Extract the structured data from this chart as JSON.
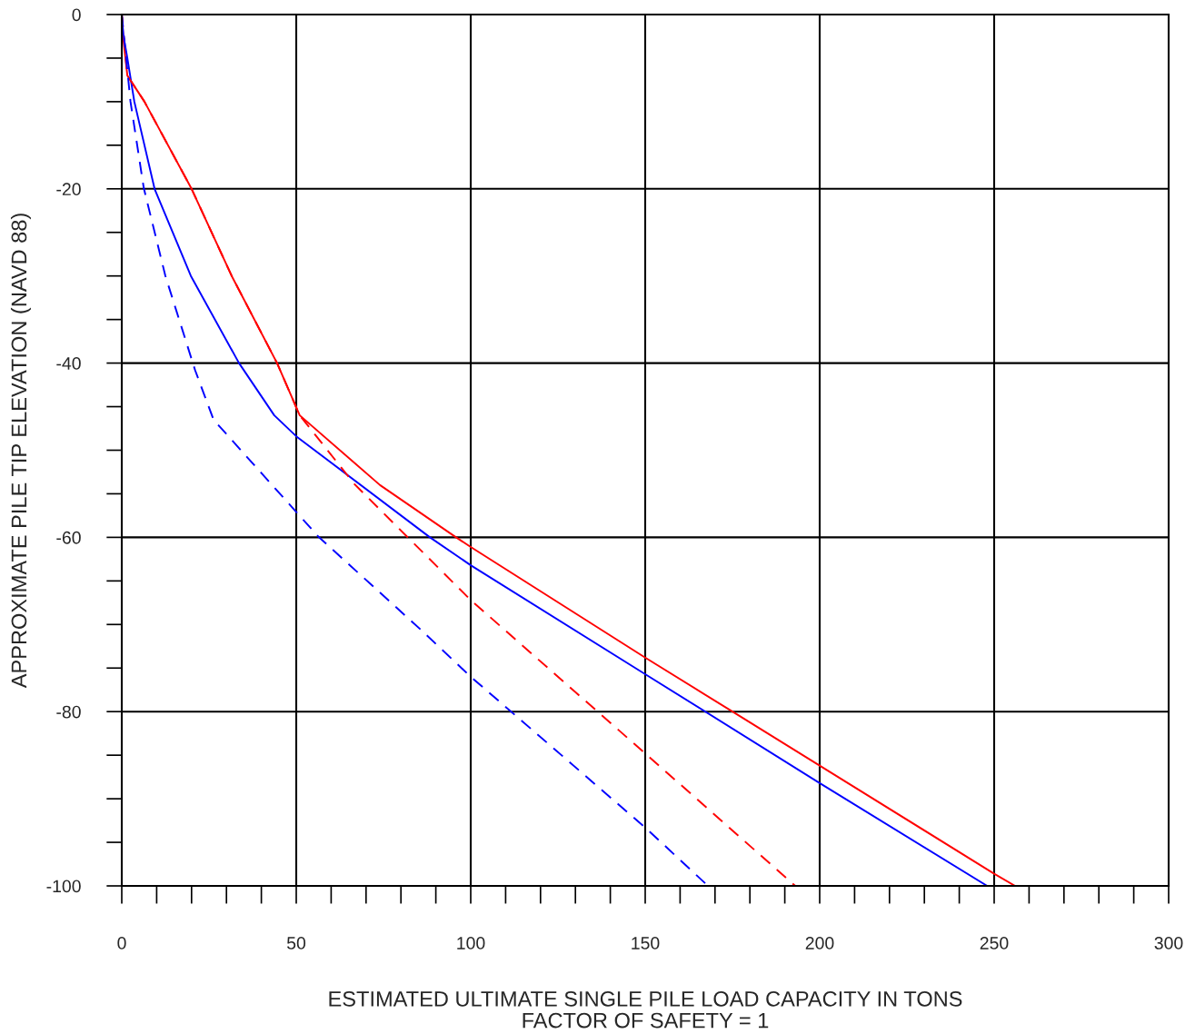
{
  "chart_data": {
    "type": "line",
    "xlabel": "ESTIMATED ULTIMATE SINGLE PILE LOAD CAPACITY IN TONS\nFACTOR OF SAFETY = 1",
    "ylabel": "APPROXIMATE PILE TIP ELEVATION (NAVD 88)",
    "xlim": [
      0,
      300
    ],
    "ylim": [
      -100,
      0
    ],
    "xticks": [
      0,
      50,
      100,
      150,
      200,
      250,
      300
    ],
    "yticks": [
      -100,
      -80,
      -60,
      -40,
      -20,
      0
    ],
    "grid": true,
    "legend": false,
    "marker": "none",
    "series": [
      {
        "color": "#ff0000",
        "line_style": "solid",
        "x": [
          0,
          0.5,
          1.6,
          6.5,
          20,
          31.5,
          44.5,
          51,
          74,
          95.8,
          100,
          150,
          175,
          200,
          250,
          256
        ],
        "values": [
          0,
          -3,
          -7,
          -10,
          -20,
          -30,
          -40,
          -46,
          -54,
          -60,
          -61.1,
          -73.8,
          -80,
          -86.2,
          -98.6,
          -100
        ]
      },
      {
        "color": "#0000ff",
        "line_style": "solid",
        "x": [
          0,
          0.5,
          1.6,
          3.6,
          9.4,
          19.8,
          33.6,
          43.7,
          50,
          88.3,
          100,
          150,
          200,
          248
        ],
        "values": [
          0,
          -2.5,
          -5,
          -10,
          -20,
          -30,
          -40,
          -46,
          -48.4,
          -60,
          -63.2,
          -75.7,
          -88.2,
          -100
        ]
      },
      {
        "color": "#ff0000",
        "line_style": "dashed",
        "x": [
          0,
          1.6,
          6.5,
          20,
          31.5,
          44.5,
          51,
          66.7,
          100,
          150,
          193
        ],
        "values": [
          0,
          -7,
          -10,
          -20,
          -30,
          -40,
          -46,
          -53.9,
          -67.2,
          -84.8,
          -100
        ]
      },
      {
        "color": "#0000ff",
        "line_style": "dashed",
        "x": [
          0,
          2.5,
          6.3,
          12.5,
          21,
          26.3,
          56.3,
          85.7,
          100,
          150,
          168
        ],
        "values": [
          0,
          -10,
          -19.9,
          -30,
          -40.8,
          -46.5,
          -59.9,
          -70.6,
          -76,
          -93.3,
          -100
        ]
      }
    ]
  }
}
